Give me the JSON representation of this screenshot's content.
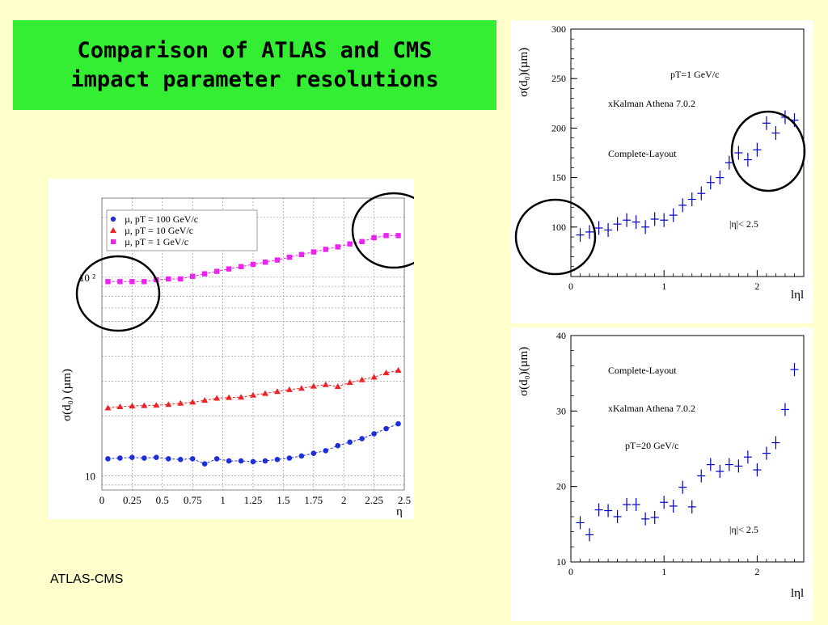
{
  "slide": {
    "title_line1": "Comparison of ATLAS and CMS",
    "title_line2": "impact parameter resolutions",
    "footer": "ATLAS-CMS",
    "bg_color": "#ffffcc",
    "title_bg_color": "#33ee33"
  },
  "chart_data": [
    {
      "type": "scatter",
      "name": "cms_eta_plot",
      "xlabel": "η",
      "ylabel": "σ(d₀) (µm)",
      "xlim": [
        0,
        2.5
      ],
      "ylim": [
        8.5,
        250
      ],
      "yscale": "log",
      "grid": true,
      "xticks": [
        0,
        0.25,
        0.5,
        0.75,
        1,
        1.25,
        1.5,
        1.75,
        2,
        2.25,
        2.5
      ],
      "xtick_labels": [
        "0",
        "0.25",
        "0.5",
        "0.75",
        "1",
        "1.25",
        "1.5",
        "1.75",
        "2",
        "2.25",
        "2.5"
      ],
      "ytick_labels": [
        {
          "value": 10,
          "text": "10"
        },
        {
          "value": 100,
          "text": "10 ²"
        }
      ],
      "legend_position": "top-left",
      "series": [
        {
          "name": "µ, pT = 100 GeV/c",
          "color": "#1f2fd8",
          "marker": "circle",
          "x": [
            0.05,
            0.15,
            0.25,
            0.35,
            0.45,
            0.55,
            0.65,
            0.75,
            0.85,
            0.95,
            1.05,
            1.15,
            1.25,
            1.35,
            1.45,
            1.55,
            1.65,
            1.75,
            1.85,
            1.95,
            2.05,
            2.15,
            2.25,
            2.35,
            2.45
          ],
          "y": [
            12.2,
            12.3,
            12.4,
            12.3,
            12.4,
            12.2,
            12.1,
            12.2,
            11.5,
            12.2,
            11.9,
            11.9,
            11.8,
            11.9,
            12.1,
            12.3,
            12.6,
            13.0,
            13.4,
            14.2,
            14.8,
            15.4,
            16.3,
            17.3,
            18.3
          ]
        },
        {
          "name": "µ, pT = 10 GeV/c",
          "color": "#ee2222",
          "marker": "triangle",
          "x": [
            0.05,
            0.15,
            0.25,
            0.35,
            0.45,
            0.55,
            0.65,
            0.75,
            0.85,
            0.95,
            1.05,
            1.15,
            1.25,
            1.35,
            1.45,
            1.55,
            1.65,
            1.75,
            1.85,
            1.95,
            2.05,
            2.15,
            2.25,
            2.35,
            2.45
          ],
          "y": [
            22.0,
            22.3,
            22.5,
            22.6,
            22.7,
            22.9,
            23.2,
            23.5,
            24.0,
            24.6,
            24.8,
            24.9,
            25.5,
            26.0,
            26.6,
            27.2,
            27.6,
            28.3,
            28.8,
            28.2,
            29.5,
            30.5,
            31.4,
            33.0,
            34.0
          ]
        },
        {
          "name": "µ, pT = 1 GeV/c",
          "color": "#ee22ee",
          "marker": "square",
          "x": [
            0.05,
            0.15,
            0.25,
            0.35,
            0.45,
            0.55,
            0.65,
            0.75,
            0.85,
            0.95,
            1.05,
            1.15,
            1.25,
            1.35,
            1.45,
            1.55,
            1.65,
            1.75,
            1.85,
            1.95,
            2.05,
            2.15,
            2.25,
            2.35,
            2.45
          ],
          "y": [
            95,
            95,
            95,
            95,
            97,
            98,
            98,
            101,
            104,
            107,
            110,
            113,
            116,
            119,
            122,
            126,
            130,
            134,
            138,
            142,
            147,
            151,
            158,
            162,
            162
          ]
        }
      ]
    },
    {
      "type": "scatter",
      "name": "atlas_pt1_plot",
      "xlabel": "lηl",
      "ylabel": "σ(d₀)(µm)",
      "xlim": [
        0,
        2.5
      ],
      "ylim": [
        50,
        300
      ],
      "xticks": [
        0,
        1,
        2
      ],
      "yticks": [
        100,
        150,
        200,
        250,
        300
      ],
      "annotations": [
        "pT=1 GeV/c",
        "xKalman Athena 7.0.2",
        "Complete-Layout",
        "|η|< 2.5"
      ],
      "series": [
        {
          "color": "#0000cc",
          "marker": "cross",
          "x": [
            0.1,
            0.2,
            0.3,
            0.4,
            0.5,
            0.6,
            0.7,
            0.8,
            0.9,
            1.0,
            1.1,
            1.2,
            1.3,
            1.4,
            1.5,
            1.6,
            1.7,
            1.8,
            1.9,
            2.0,
            2.1,
            2.2,
            2.3,
            2.4
          ],
          "y": [
            92,
            95,
            99,
            97,
            103,
            107,
            105,
            100,
            108,
            107,
            112,
            122,
            128,
            134,
            145,
            150,
            165,
            175,
            168,
            178,
            205,
            195,
            211,
            208
          ]
        }
      ]
    },
    {
      "type": "scatter",
      "name": "atlas_pt20_plot",
      "xlabel": "lηl",
      "ylabel": "σ(d₀)(µm)",
      "xlim": [
        0,
        2.5
      ],
      "ylim": [
        10,
        40
      ],
      "xticks": [
        0,
        1,
        2
      ],
      "yticks": [
        10,
        20,
        30,
        40
      ],
      "annotations": [
        "Complete-Layout",
        "xKalman Athena 7.0.2",
        "pT=20 GeV/c",
        "|η|< 2.5"
      ],
      "series": [
        {
          "color": "#0000cc",
          "marker": "cross",
          "x": [
            0.1,
            0.2,
            0.3,
            0.4,
            0.5,
            0.6,
            0.7,
            0.8,
            0.9,
            1.0,
            1.1,
            1.2,
            1.3,
            1.4,
            1.5,
            1.6,
            1.7,
            1.8,
            1.9,
            2.0,
            2.1,
            2.2,
            2.3,
            2.4
          ],
          "y": [
            15.2,
            13.6,
            16.9,
            16.8,
            16.0,
            17.6,
            17.6,
            15.7,
            15.9,
            17.9,
            17.4,
            19.9,
            17.3,
            21.4,
            22.9,
            22.0,
            22.9,
            22.7,
            23.9,
            22.2,
            24.4,
            25.8,
            30.2,
            35.5
          ]
        }
      ]
    }
  ]
}
